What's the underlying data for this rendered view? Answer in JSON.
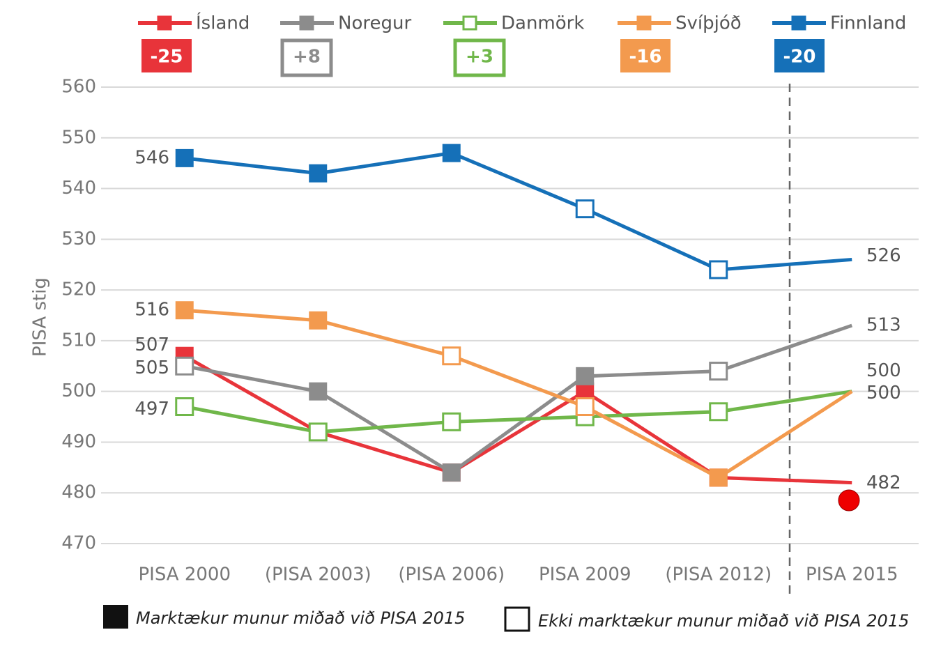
{
  "chart_data": {
    "type": "line",
    "y_label": "PISA stig",
    "categories": [
      "PISA 2000",
      "(PISA 2003)",
      "(PISA 2006)",
      "PISA 2009",
      "(PISA 2012)",
      "PISA 2015"
    ],
    "ylim": [
      470,
      560
    ],
    "yticks": [
      470,
      480,
      490,
      500,
      510,
      520,
      530,
      540,
      550,
      560
    ],
    "grid": true,
    "series": [
      {
        "name": "Ísland",
        "color": "#e8343a",
        "values": [
          507,
          492,
          484,
          500,
          483,
          482
        ],
        "significant": [
          true,
          true,
          true,
          true,
          true,
          null
        ],
        "change": "-25",
        "change_significant": true
      },
      {
        "name": "Noregur",
        "color": "#8c8c8c",
        "values": [
          505,
          500,
          484,
          503,
          504,
          513
        ],
        "significant": [
          false,
          true,
          true,
          true,
          false,
          null
        ],
        "change": "+8",
        "change_significant": false
      },
      {
        "name": "Danmörk",
        "color": "#70b74a",
        "values": [
          497,
          492,
          494,
          495,
          496,
          500
        ],
        "significant": [
          false,
          false,
          false,
          false,
          false,
          null
        ],
        "change": "+3",
        "change_significant": false
      },
      {
        "name": "Svíþjóð",
        "color": "#f39a4e",
        "values": [
          516,
          514,
          507,
          497,
          483,
          500
        ],
        "significant": [
          true,
          true,
          false,
          false,
          true,
          null
        ],
        "change": "-16",
        "change_significant": true
      },
      {
        "name": "Finnland",
        "color": "#1570b8",
        "values": [
          546,
          543,
          547,
          536,
          524,
          526
        ],
        "significant": [
          true,
          true,
          true,
          false,
          false,
          null
        ],
        "change": "-20",
        "change_significant": true
      }
    ],
    "legend": {
      "filled": "Marktækur munur miðað við PISA 2015",
      "hollow": "Ekki marktækur munur miðað við PISA 2015"
    }
  }
}
